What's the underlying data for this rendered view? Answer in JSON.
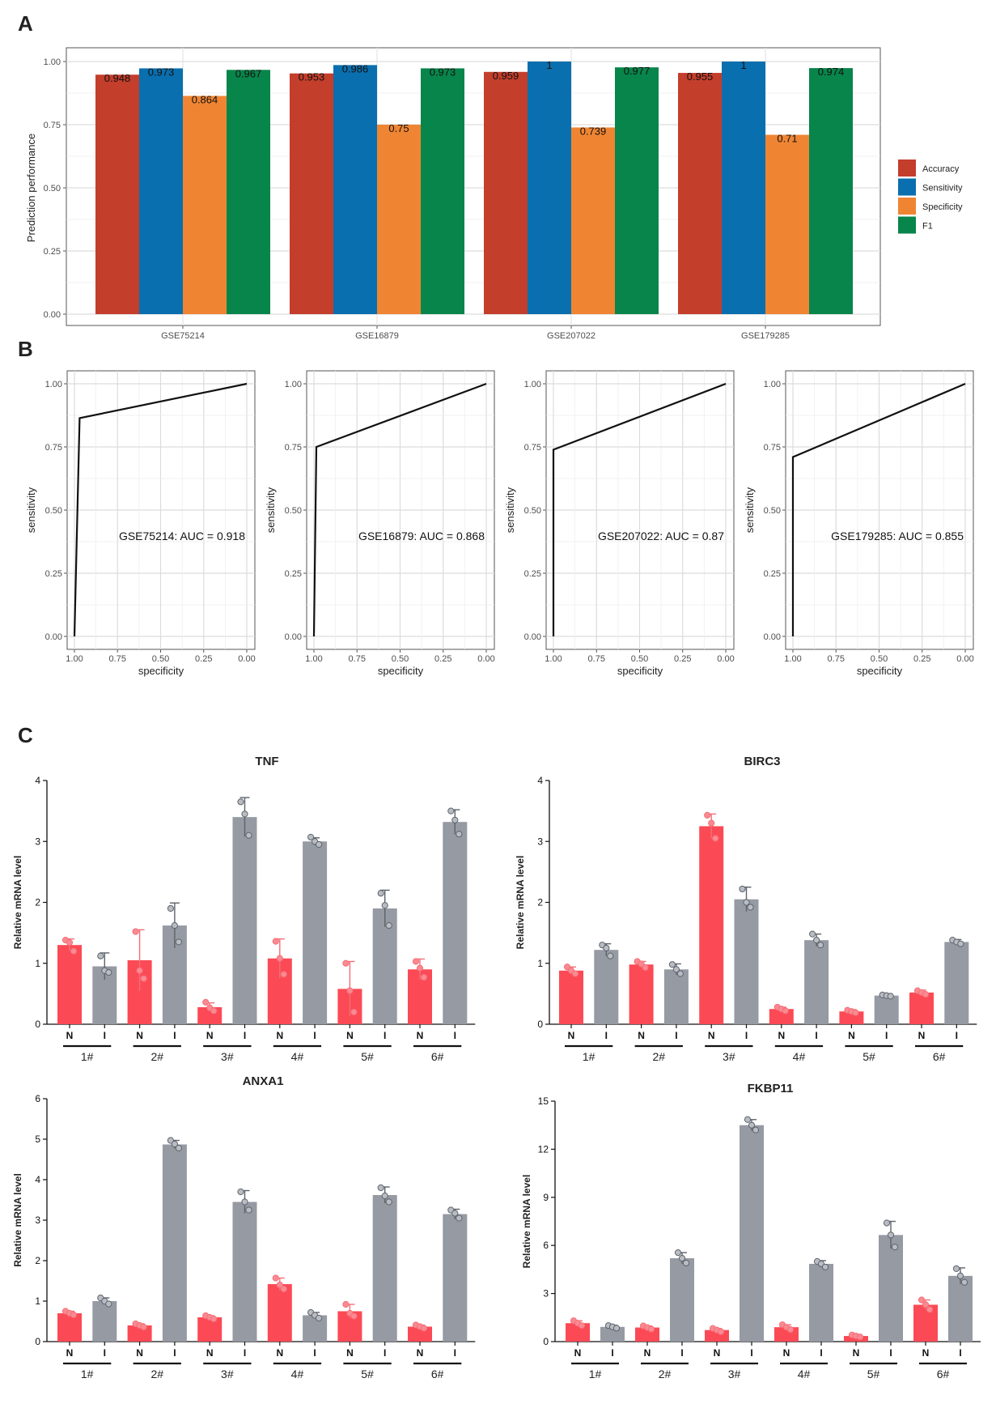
{
  "panels": {
    "a": "A",
    "b": "B",
    "c": "C"
  },
  "colors": {
    "accuracy": "#C43E2C",
    "sensitivity": "#0A6FAE",
    "specificity": "#EF8533",
    "f1": "#08854A",
    "normal": "#FB4A55",
    "inflamed": "#959AA3"
  },
  "chart_data": [
    {
      "id": "A",
      "type": "bar",
      "title": "",
      "xlabel": "",
      "ylabel": "Prediction performance",
      "ylim": [
        0,
        1
      ],
      "yticks": [
        "0.00",
        "0.25",
        "0.50",
        "0.75",
        "1.00"
      ],
      "grid": true,
      "legend_position": "right",
      "categories": [
        "GSE75214",
        "GSE16879",
        "GSE207022",
        "GSE179285"
      ],
      "series": [
        {
          "name": "Accuracy",
          "color_key": "accuracy",
          "values": [
            0.948,
            0.953,
            0.959,
            0.955
          ],
          "labels": [
            "0.948",
            "0.953",
            "0.959",
            "0.955"
          ]
        },
        {
          "name": "Sensitivity",
          "color_key": "sensitivity",
          "values": [
            0.973,
            0.986,
            1,
            1
          ],
          "labels": [
            "0.973",
            "0.986",
            "1",
            "1"
          ]
        },
        {
          "name": "Specificity",
          "color_key": "specificity",
          "values": [
            0.864,
            0.75,
            0.739,
            0.71
          ],
          "labels": [
            "0.864",
            "0.75",
            "0.739",
            "0.71"
          ]
        },
        {
          "name": "F1",
          "color_key": "f1",
          "values": [
            0.967,
            0.973,
            0.977,
            0.974
          ],
          "labels": [
            "0.967",
            "0.973",
            "0.977",
            "0.974"
          ]
        }
      ]
    },
    {
      "id": "B",
      "type": "line",
      "xlabel": "specificity",
      "ylabel": "sensitivity",
      "xlim": [
        1,
        0
      ],
      "ylim": [
        0,
        1
      ],
      "xticks": [
        "1.00",
        "0.75",
        "0.50",
        "0.25",
        "0.00"
      ],
      "yticks": [
        "0.00",
        "0.25",
        "0.50",
        "0.75",
        "1.00"
      ],
      "grid": true,
      "plots": [
        {
          "dataset": "GSE75214",
          "auc_text": "GSE75214: AUC = 0.918",
          "points": [
            [
              1,
              0
            ],
            [
              0.97,
              0.864
            ],
            [
              0,
              1
            ]
          ]
        },
        {
          "dataset": "GSE16879",
          "auc_text": "GSE16879: AUC = 0.868",
          "points": [
            [
              1,
              0
            ],
            [
              0.986,
              0.75
            ],
            [
              0,
              1
            ]
          ]
        },
        {
          "dataset": "GSE207022",
          "auc_text": "GSE207022: AUC = 0.87",
          "points": [
            [
              1,
              0
            ],
            [
              1,
              0.739
            ],
            [
              0,
              1
            ]
          ]
        },
        {
          "dataset": "GSE179285",
          "auc_text": "GSE179285: AUC = 0.855",
          "points": [
            [
              1,
              0
            ],
            [
              1,
              0.71
            ],
            [
              0,
              1
            ]
          ]
        }
      ]
    },
    {
      "id": "C",
      "type": "bar",
      "ylabel": "Relative mRNA level",
      "bar_labels": [
        "N",
        "I"
      ],
      "group_labels": [
        "1#",
        "2#",
        "3#",
        "4#",
        "5#",
        "6#"
      ],
      "error_bars": "sd",
      "legend_position": "none",
      "subplots": [
        {
          "title": "TNF",
          "ylim": [
            0,
            4
          ],
          "yticks": [
            "0",
            "1",
            "2",
            "3",
            "4"
          ],
          "values": [
            1.3,
            0.95,
            1.05,
            1.62,
            0.28,
            3.4,
            1.08,
            3.0,
            0.58,
            1.9,
            0.9,
            3.32
          ],
          "sd": [
            0.1,
            0.22,
            0.5,
            0.37,
            0.07,
            0.32,
            0.32,
            0.06,
            0.45,
            0.3,
            0.17,
            0.2
          ],
          "points": [
            [
              1.38,
              1.34,
              1.2
            ],
            [
              1.12,
              0.88,
              0.85
            ],
            [
              1.52,
              0.88,
              0.75
            ],
            [
              1.9,
              1.62,
              1.35
            ],
            [
              0.36,
              0.27,
              0.22
            ],
            [
              3.65,
              3.45,
              3.1
            ],
            [
              1.36,
              1.08,
              0.82
            ],
            [
              3.07,
              3.0,
              2.95
            ],
            [
              1.0,
              0.55,
              0.2
            ],
            [
              2.15,
              1.95,
              1.62
            ],
            [
              1.03,
              0.92,
              0.77
            ],
            [
              3.5,
              3.35,
              3.12
            ]
          ]
        },
        {
          "title": "BIRC3",
          "ylim": [
            0,
            4
          ],
          "yticks": [
            "0",
            "1",
            "2",
            "3",
            "4"
          ],
          "values": [
            0.88,
            1.22,
            0.98,
            0.9,
            3.25,
            2.05,
            0.25,
            1.38,
            0.21,
            0.47,
            0.52,
            1.35
          ],
          "sd": [
            0.06,
            0.1,
            0.05,
            0.09,
            0.2,
            0.2,
            0.03,
            0.1,
            0.03,
            0.02,
            0.04,
            0.04
          ],
          "points": [
            [
              0.94,
              0.88,
              0.83
            ],
            [
              1.3,
              1.25,
              1.12
            ],
            [
              1.03,
              0.99,
              0.93
            ],
            [
              0.98,
              0.9,
              0.83
            ],
            [
              3.43,
              3.3,
              3.05
            ],
            [
              2.22,
              2.0,
              1.92
            ],
            [
              0.28,
              0.25,
              0.22
            ],
            [
              1.48,
              1.38,
              1.3
            ],
            [
              0.23,
              0.21,
              0.19
            ],
            [
              0.48,
              0.47,
              0.46
            ],
            [
              0.55,
              0.52,
              0.49
            ],
            [
              1.38,
              1.35,
              1.32
            ]
          ]
        },
        {
          "title": "ANXA1",
          "ylim": [
            0,
            6
          ],
          "yticks": [
            "0",
            "1",
            "2",
            "3",
            "4",
            "5",
            "6"
          ],
          "values": [
            0.7,
            1.0,
            0.4,
            4.87,
            0.6,
            3.45,
            1.42,
            0.65,
            0.75,
            3.62,
            0.37,
            3.15
          ],
          "sd": [
            0.05,
            0.08,
            0.04,
            0.1,
            0.04,
            0.28,
            0.15,
            0.07,
            0.17,
            0.2,
            0.04,
            0.12
          ],
          "points": [
            [
              0.75,
              0.7,
              0.66
            ],
            [
              1.08,
              1.0,
              0.93
            ],
            [
              0.44,
              0.4,
              0.36
            ],
            [
              4.97,
              4.88,
              4.78
            ],
            [
              0.64,
              0.6,
              0.56
            ],
            [
              3.7,
              3.45,
              3.25
            ],
            [
              1.57,
              1.4,
              1.3
            ],
            [
              0.72,
              0.65,
              0.58
            ],
            [
              0.92,
              0.7,
              0.63
            ],
            [
              3.8,
              3.6,
              3.45
            ],
            [
              0.41,
              0.37,
              0.33
            ],
            [
              3.25,
              3.17,
              3.05
            ]
          ]
        },
        {
          "title": "FKBP11",
          "ylim": [
            0,
            15
          ],
          "yticks": [
            "0",
            "3",
            "6",
            "9",
            "12",
            "15"
          ],
          "values": [
            1.15,
            0.92,
            0.88,
            5.2,
            0.72,
            13.5,
            0.9,
            4.85,
            0.35,
            6.65,
            2.3,
            4.1
          ],
          "sd": [
            0.15,
            0.1,
            0.1,
            0.35,
            0.1,
            0.35,
            0.15,
            0.2,
            0.06,
            0.85,
            0.3,
            0.5
          ],
          "points": [
            [
              1.3,
              1.15,
              1.0
            ],
            [
              1.0,
              0.92,
              0.84
            ],
            [
              0.98,
              0.88,
              0.78
            ],
            [
              5.55,
              5.2,
              4.9
            ],
            [
              0.82,
              0.72,
              0.62
            ],
            [
              13.85,
              13.5,
              13.2
            ],
            [
              1.05,
              0.9,
              0.75
            ],
            [
              5.0,
              4.85,
              4.65
            ],
            [
              0.41,
              0.35,
              0.29
            ],
            [
              7.4,
              6.65,
              5.9
            ],
            [
              2.6,
              2.3,
              2.0
            ],
            [
              4.55,
              4.1,
              3.7
            ]
          ]
        }
      ]
    }
  ]
}
